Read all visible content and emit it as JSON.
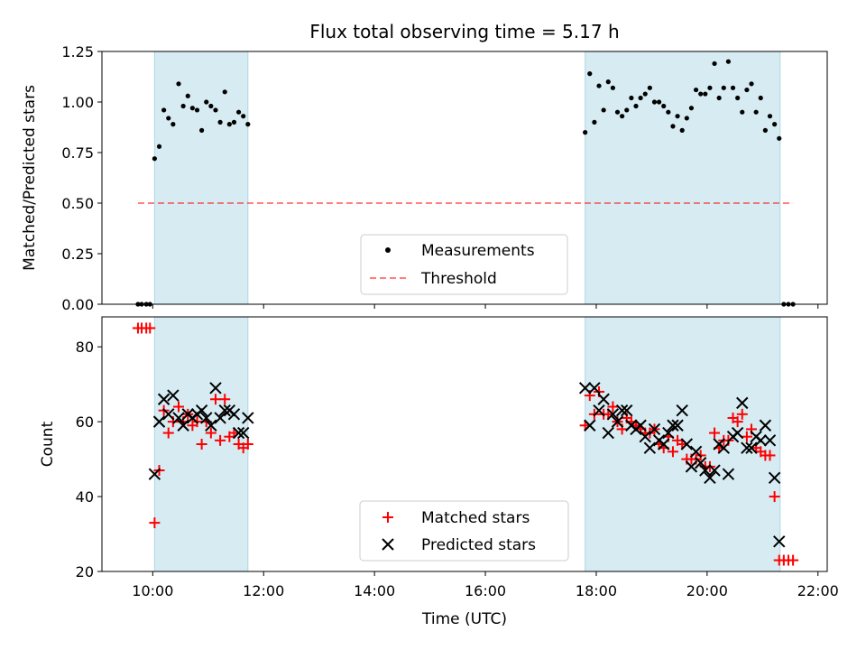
{
  "colors": {
    "band": "#add8e6",
    "measurement": "#000000",
    "threshold": "#ff0000",
    "matched": "#ff0000",
    "predicted": "#000000"
  },
  "chart_data": [
    {
      "type": "scatter",
      "title": "Flux total observing time = 5.17 h",
      "xlabel": "",
      "ylabel": "Matched/Predicted stars",
      "xlim": [
        "09:05",
        "22:10"
      ],
      "ylim": [
        0,
        1.25
      ],
      "yticks": [
        "0.00",
        "0.25",
        "0.50",
        "0.75",
        "1.00",
        "1.25"
      ],
      "grid": false,
      "legend_position": "lower-center",
      "observing_bands": [
        [
          "10:02",
          "11:43"
        ],
        [
          "17:48",
          "21:19"
        ]
      ],
      "series": [
        {
          "name": "Measurements",
          "marker": "dot",
          "color": "#000000",
          "points": [
            [
              "09:44",
              0.0
            ],
            [
              "09:48",
              0.0
            ],
            [
              "09:53",
              0.0
            ],
            [
              "09:57",
              0.0
            ],
            [
              "10:02",
              0.72
            ],
            [
              "10:07",
              0.78
            ],
            [
              "10:12",
              0.96
            ],
            [
              "10:17",
              0.92
            ],
            [
              "10:22",
              0.89
            ],
            [
              "10:28",
              1.09
            ],
            [
              "10:33",
              0.98
            ],
            [
              "10:38",
              1.03
            ],
            [
              "10:43",
              0.97
            ],
            [
              "10:48",
              0.96
            ],
            [
              "10:53",
              0.86
            ],
            [
              "10:58",
              1.0
            ],
            [
              "11:03",
              0.98
            ],
            [
              "11:08",
              0.96
            ],
            [
              "11:13",
              0.9
            ],
            [
              "11:18",
              1.05
            ],
            [
              "11:23",
              0.89
            ],
            [
              "11:28",
              0.9
            ],
            [
              "11:33",
              0.95
            ],
            [
              "11:38",
              0.93
            ],
            [
              "11:43",
              0.89
            ],
            [
              "17:48",
              0.85
            ],
            [
              "17:53",
              1.14
            ],
            [
              "17:58",
              0.9
            ],
            [
              "18:03",
              1.08
            ],
            [
              "18:08",
              0.96
            ],
            [
              "18:13",
              1.1
            ],
            [
              "18:18",
              1.07
            ],
            [
              "18:23",
              0.95
            ],
            [
              "18:28",
              0.93
            ],
            [
              "18:33",
              0.96
            ],
            [
              "18:38",
              1.02
            ],
            [
              "18:43",
              0.98
            ],
            [
              "18:48",
              1.02
            ],
            [
              "18:53",
              1.04
            ],
            [
              "18:58",
              1.07
            ],
            [
              "19:03",
              1.0
            ],
            [
              "19:08",
              1.0
            ],
            [
              "19:13",
              0.98
            ],
            [
              "19:18",
              0.95
            ],
            [
              "19:23",
              0.88
            ],
            [
              "19:28",
              0.93
            ],
            [
              "19:33",
              0.86
            ],
            [
              "19:38",
              0.92
            ],
            [
              "19:43",
              0.97
            ],
            [
              "19:48",
              1.06
            ],
            [
              "19:53",
              1.04
            ],
            [
              "19:58",
              1.04
            ],
            [
              "20:03",
              1.07
            ],
            [
              "20:08",
              1.19
            ],
            [
              "20:13",
              1.02
            ],
            [
              "20:18",
              1.07
            ],
            [
              "20:23",
              1.2
            ],
            [
              "20:28",
              1.07
            ],
            [
              "20:33",
              1.02
            ],
            [
              "20:38",
              0.95
            ],
            [
              "20:43",
              1.06
            ],
            [
              "20:48",
              1.09
            ],
            [
              "20:53",
              0.95
            ],
            [
              "20:58",
              1.02
            ],
            [
              "21:03",
              0.86
            ],
            [
              "21:08",
              0.93
            ],
            [
              "21:13",
              0.89
            ],
            [
              "21:18",
              0.82
            ],
            [
              "21:23",
              0.0
            ],
            [
              "21:28",
              0.0
            ],
            [
              "21:33",
              0.0
            ]
          ]
        },
        {
          "name": "Threshold",
          "marker": "dashed-line",
          "color": "#ff0000",
          "points": [
            [
              "09:44",
              0.5
            ],
            [
              "21:33",
              0.5
            ]
          ]
        }
      ]
    },
    {
      "type": "scatter",
      "title": "",
      "xlabel": "Time (UTC)",
      "ylabel": "Count",
      "xlim": [
        "09:05",
        "22:10"
      ],
      "ylim": [
        20,
        88
      ],
      "yticks": [
        "20",
        "40",
        "60",
        "80"
      ],
      "xticks": [
        "10:00",
        "12:00",
        "14:00",
        "16:00",
        "18:00",
        "20:00",
        "22:00"
      ],
      "grid": false,
      "legend_position": "lower-center",
      "observing_bands": [
        [
          "10:02",
          "11:43"
        ],
        [
          "17:48",
          "21:19"
        ]
      ],
      "series": [
        {
          "name": "Matched stars",
          "marker": "plus",
          "color": "#ff0000",
          "points": [
            [
              "09:44",
              85
            ],
            [
              "09:48",
              85
            ],
            [
              "09:53",
              85
            ],
            [
              "09:57",
              85
            ],
            [
              "10:02",
              33
            ],
            [
              "10:07",
              47
            ],
            [
              "10:12",
              63
            ],
            [
              "10:17",
              57
            ],
            [
              "10:22",
              60
            ],
            [
              "10:28",
              64
            ],
            [
              "10:33",
              60
            ],
            [
              "10:38",
              62
            ],
            [
              "10:43",
              59
            ],
            [
              "10:48",
              60
            ],
            [
              "10:53",
              54
            ],
            [
              "10:58",
              60
            ],
            [
              "11:03",
              57
            ],
            [
              "11:08",
              66
            ],
            [
              "11:13",
              55
            ],
            [
              "11:18",
              66
            ],
            [
              "11:23",
              56
            ],
            [
              "11:28",
              57
            ],
            [
              "11:33",
              54
            ],
            [
              "11:38",
              53
            ],
            [
              "11:43",
              54
            ],
            [
              "17:48",
              59
            ],
            [
              "17:53",
              67
            ],
            [
              "17:58",
              62
            ],
            [
              "18:03",
              68
            ],
            [
              "18:08",
              62
            ],
            [
              "18:13",
              62
            ],
            [
              "18:18",
              64
            ],
            [
              "18:23",
              60
            ],
            [
              "18:28",
              58
            ],
            [
              "18:33",
              61
            ],
            [
              "18:38",
              60
            ],
            [
              "18:43",
              59
            ],
            [
              "18:48",
              58
            ],
            [
              "18:53",
              57
            ],
            [
              "18:58",
              57
            ],
            [
              "19:03",
              58
            ],
            [
              "19:08",
              54
            ],
            [
              "19:13",
              53
            ],
            [
              "19:18",
              56
            ],
            [
              "19:23",
              52
            ],
            [
              "19:28",
              55
            ],
            [
              "19:33",
              54
            ],
            [
              "19:38",
              50
            ],
            [
              "19:43",
              50
            ],
            [
              "19:48",
              50
            ],
            [
              "19:53",
              51
            ],
            [
              "19:58",
              48
            ],
            [
              "20:03",
              48
            ],
            [
              "20:08",
              57
            ],
            [
              "20:13",
              53
            ],
            [
              "20:18",
              55
            ],
            [
              "20:23",
              55
            ],
            [
              "20:28",
              61
            ],
            [
              "20:33",
              60
            ],
            [
              "20:38",
              62
            ],
            [
              "20:43",
              56
            ],
            [
              "20:48",
              58
            ],
            [
              "20:53",
              53
            ],
            [
              "20:58",
              52
            ],
            [
              "21:03",
              51
            ],
            [
              "21:08",
              51
            ],
            [
              "21:13",
              40
            ],
            [
              "21:18",
              23
            ],
            [
              "21:23",
              23
            ],
            [
              "21:28",
              23
            ],
            [
              "21:33",
              23
            ]
          ]
        },
        {
          "name": "Predicted stars",
          "marker": "x",
          "color": "#000000",
          "points": [
            [
              "10:02",
              46
            ],
            [
              "10:07",
              60
            ],
            [
              "10:12",
              66
            ],
            [
              "10:17",
              62
            ],
            [
              "10:22",
              67
            ],
            [
              "10:28",
              61
            ],
            [
              "10:33",
              59
            ],
            [
              "10:38",
              62
            ],
            [
              "10:43",
              61
            ],
            [
              "10:48",
              62
            ],
            [
              "10:53",
              63
            ],
            [
              "10:58",
              61
            ],
            [
              "11:03",
              59
            ],
            [
              "11:08",
              69
            ],
            [
              "11:13",
              61
            ],
            [
              "11:18",
              63
            ],
            [
              "11:23",
              63
            ],
            [
              "11:28",
              62
            ],
            [
              "11:33",
              57
            ],
            [
              "11:38",
              57
            ],
            [
              "11:43",
              61
            ],
            [
              "17:48",
              69
            ],
            [
              "17:53",
              59
            ],
            [
              "17:58",
              69
            ],
            [
              "18:03",
              63
            ],
            [
              "18:08",
              66
            ],
            [
              "18:13",
              57
            ],
            [
              "18:18",
              62
            ],
            [
              "18:23",
              60
            ],
            [
              "18:28",
              63
            ],
            [
              "18:33",
              63
            ],
            [
              "18:38",
              59
            ],
            [
              "18:43",
              58
            ],
            [
              "18:48",
              59
            ],
            [
              "18:53",
              56
            ],
            [
              "18:58",
              53
            ],
            [
              "19:03",
              58
            ],
            [
              "19:08",
              55
            ],
            [
              "19:13",
              54
            ],
            [
              "19:18",
              57
            ],
            [
              "19:23",
              59
            ],
            [
              "19:28",
              59
            ],
            [
              "19:33",
              63
            ],
            [
              "19:38",
              54
            ],
            [
              "19:43",
              48
            ],
            [
              "19:48",
              52
            ],
            [
              "19:53",
              49
            ],
            [
              "19:58",
              47
            ],
            [
              "20:03",
              45
            ],
            [
              "20:08",
              47
            ],
            [
              "20:13",
              54
            ],
            [
              "20:18",
              53
            ],
            [
              "20:23",
              46
            ],
            [
              "20:28",
              56
            ],
            [
              "20:33",
              57
            ],
            [
              "20:38",
              65
            ],
            [
              "20:43",
              53
            ],
            [
              "20:48",
              53
            ],
            [
              "20:53",
              56
            ],
            [
              "20:58",
              55
            ],
            [
              "21:03",
              59
            ],
            [
              "21:08",
              55
            ],
            [
              "21:13",
              45
            ],
            [
              "21:18",
              28
            ]
          ]
        }
      ]
    }
  ]
}
